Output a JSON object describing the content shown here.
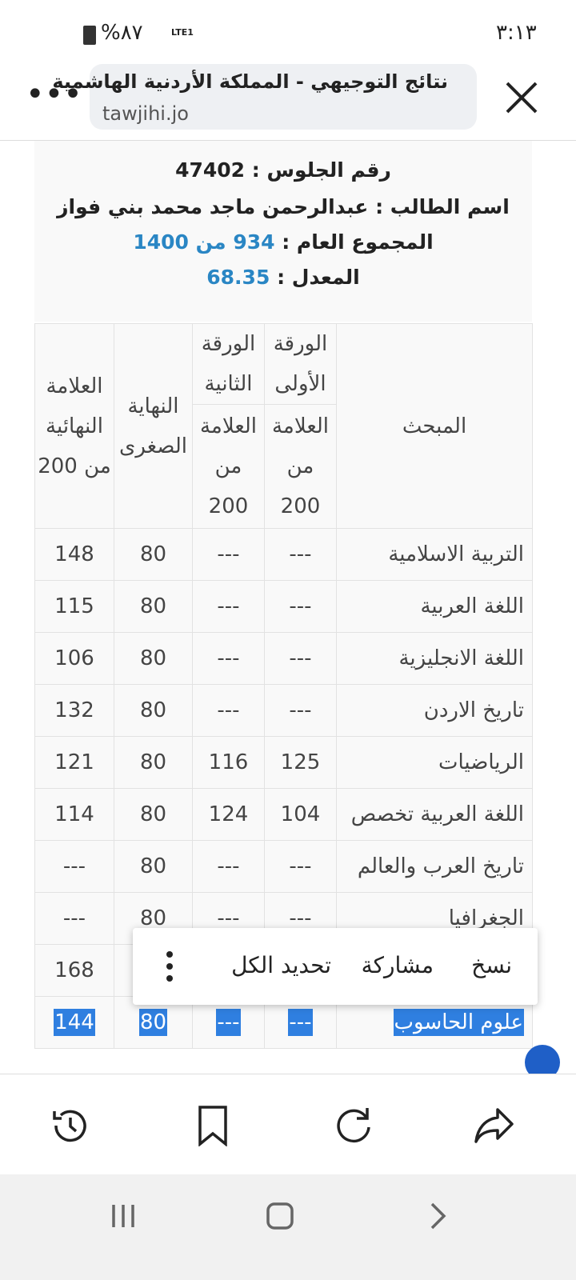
{
  "status_bar": {
    "time": "٣:١٣",
    "battery": "%٨٧",
    "network": "LTE1"
  },
  "browser": {
    "title": "نتائج التوجيهي - المملكة الأردنية الهاشمية",
    "url": "tawjihi.jo"
  },
  "student": {
    "seat_label": "رقم الجلوس :",
    "seat_number": "47402",
    "name_label": "اسم الطالب :",
    "name": "عبدالرحمن ماجد محمد بني فواز",
    "total_label": "المجموع العام :",
    "total": "934 من 1400",
    "average_label": "المعدل :",
    "average": "68.35"
  },
  "table": {
    "headers": {
      "subject": "المبحث",
      "paper1": "الورقة الأولى",
      "paper2": "الورقة الثانية",
      "paper1_mark": "العلامة من 200",
      "paper2_mark": "العلامة من 200",
      "min": "النهاية الصغرى",
      "final": "العلامة النهائية من 200"
    },
    "rows": [
      {
        "subject": "التربية الاسلامية",
        "paper1": "---",
        "paper2": "---",
        "min": "80",
        "final": "148"
      },
      {
        "subject": "اللغة العربية",
        "paper1": "---",
        "paper2": "---",
        "min": "80",
        "final": "115"
      },
      {
        "subject": "اللغة الانجليزية",
        "paper1": "---",
        "paper2": "---",
        "min": "80",
        "final": "106"
      },
      {
        "subject": "تاريخ الاردن",
        "paper1": "---",
        "paper2": "---",
        "min": "80",
        "final": "132"
      },
      {
        "subject": "الرياضيات",
        "paper1": "125",
        "paper2": "116",
        "min": "80",
        "final": "121"
      },
      {
        "subject": "اللغة العربية تخصص",
        "paper1": "104",
        "paper2": "124",
        "min": "80",
        "final": "114"
      },
      {
        "subject": "تاريخ العرب والعالم",
        "paper1": "---",
        "paper2": "---",
        "min": "80",
        "final": "---"
      },
      {
        "subject": "الجغرافيا",
        "paper1": "---",
        "paper2": "---",
        "min": "80",
        "final": "---"
      },
      {
        "final": "168"
      },
      {
        "subject": "علوم الحاسوب",
        "paper1": "---",
        "paper2": "---",
        "min": "80",
        "final": "144"
      }
    ]
  },
  "context_menu": {
    "copy": "نسخ",
    "share": "مشاركة",
    "select_all": "تحديد الكل"
  }
}
